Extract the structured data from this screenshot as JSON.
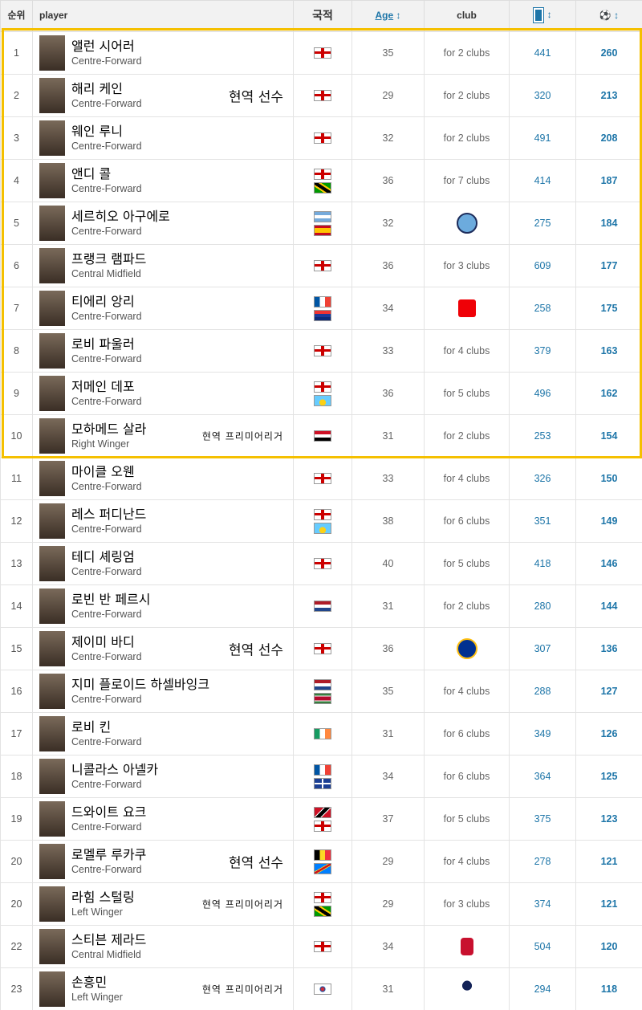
{
  "header": {
    "rank": "순위",
    "player": "player",
    "nationality": "국적",
    "age": "Age",
    "age_sort": "↕",
    "club": "club",
    "apps_icon": "pitch-icon",
    "apps_sort": "↕",
    "goals_icon": "football-icon",
    "goals_sort": "↕"
  },
  "colors": {
    "accent": "#1d75a8",
    "highlight": "#f5c000"
  },
  "rows": [
    {
      "rank": "1",
      "name": "앨런 시어러",
      "pos": "Centre-Forward",
      "note": "",
      "flags": [
        "eng"
      ],
      "age": "35",
      "club": "for 2 clubs",
      "apps": "441",
      "goals": "260"
    },
    {
      "rank": "2",
      "name": "해리 케인",
      "pos": "Centre-Forward",
      "note": "현역 선수",
      "flags": [
        "eng"
      ],
      "age": "29",
      "club": "for 2 clubs",
      "apps": "320",
      "goals": "213"
    },
    {
      "rank": "3",
      "name": "웨인 루니",
      "pos": "Centre-Forward",
      "note": "",
      "flags": [
        "eng"
      ],
      "age": "32",
      "club": "for 2 clubs",
      "apps": "491",
      "goals": "208"
    },
    {
      "rank": "4",
      "name": "앤디 콜",
      "pos": "Centre-Forward",
      "note": "",
      "flags": [
        "eng",
        "jam"
      ],
      "age": "36",
      "club": "for 7 clubs",
      "apps": "414",
      "goals": "187"
    },
    {
      "rank": "5",
      "name": "세르히오 아구에로",
      "pos": "Centre-Forward",
      "note": "",
      "flags": [
        "arg",
        "esp"
      ],
      "age": "32",
      "club": "",
      "club_logo": "man-city",
      "apps": "275",
      "goals": "184"
    },
    {
      "rank": "6",
      "name": "프랭크 램파드",
      "pos": "Central Midfield",
      "note": "",
      "flags": [
        "eng"
      ],
      "age": "36",
      "club": "for 3 clubs",
      "apps": "609",
      "goals": "177"
    },
    {
      "rank": "7",
      "name": "티에리 앙리",
      "pos": "Centre-Forward",
      "note": "",
      "flags": [
        "fra",
        "glp"
      ],
      "age": "34",
      "club": "",
      "club_logo": "arsenal",
      "apps": "258",
      "goals": "175"
    },
    {
      "rank": "8",
      "name": "로비 파울러",
      "pos": "Centre-Forward",
      "note": "",
      "flags": [
        "eng"
      ],
      "age": "33",
      "club": "for 4 clubs",
      "apps": "379",
      "goals": "163"
    },
    {
      "rank": "9",
      "name": "저메인 데포",
      "pos": "Centre-Forward",
      "note": "",
      "flags": [
        "eng",
        "lca"
      ],
      "age": "36",
      "club": "for 5 clubs",
      "apps": "496",
      "goals": "162"
    },
    {
      "rank": "10",
      "name": "모하메드 살라",
      "pos": "Right Winger",
      "note": "현역 프리미어리거",
      "flags": [
        "egy"
      ],
      "age": "31",
      "club": "for 2 clubs",
      "apps": "253",
      "goals": "154"
    },
    {
      "rank": "11",
      "name": "마이클 오웬",
      "pos": "Centre-Forward",
      "note": "",
      "flags": [
        "eng"
      ],
      "age": "33",
      "club": "for 4 clubs",
      "apps": "326",
      "goals": "150"
    },
    {
      "rank": "12",
      "name": "레스 퍼디난드",
      "pos": "Centre-Forward",
      "note": "",
      "flags": [
        "eng",
        "lca"
      ],
      "age": "38",
      "club": "for 6 clubs",
      "apps": "351",
      "goals": "149"
    },
    {
      "rank": "13",
      "name": "테디 셰링엄",
      "pos": "Centre-Forward",
      "note": "",
      "flags": [
        "eng"
      ],
      "age": "40",
      "club": "for 5 clubs",
      "apps": "418",
      "goals": "146"
    },
    {
      "rank": "14",
      "name": "로빈 반 페르시",
      "pos": "Centre-Forward",
      "note": "",
      "flags": [
        "ned"
      ],
      "age": "31",
      "club": "for 2 clubs",
      "apps": "280",
      "goals": "144"
    },
    {
      "rank": "15",
      "name": "제이미 바디",
      "pos": "Centre-Forward",
      "note": "현역 선수",
      "flags": [
        "eng"
      ],
      "age": "36",
      "club": "",
      "club_logo": "leicester",
      "apps": "307",
      "goals": "136"
    },
    {
      "rank": "16",
      "name": "지미 플로이드 하셀바잉크",
      "pos": "Centre-Forward",
      "note": "",
      "flags": [
        "ned",
        "sur"
      ],
      "age": "35",
      "club": "for 4 clubs",
      "apps": "288",
      "goals": "127"
    },
    {
      "rank": "17",
      "name": "로비 킨",
      "pos": "Centre-Forward",
      "note": "",
      "flags": [
        "irl"
      ],
      "age": "31",
      "club": "for 6 clubs",
      "apps": "349",
      "goals": "126"
    },
    {
      "rank": "18",
      "name": "니콜라스 아넬카",
      "pos": "Centre-Forward",
      "note": "",
      "flags": [
        "fra",
        "mtq"
      ],
      "age": "34",
      "club": "for 6 clubs",
      "apps": "364",
      "goals": "125"
    },
    {
      "rank": "19",
      "name": "드와이트 요크",
      "pos": "Centre-Forward",
      "note": "",
      "flags": [
        "tto",
        "eng"
      ],
      "age": "37",
      "club": "for 5 clubs",
      "apps": "375",
      "goals": "123"
    },
    {
      "rank": "20",
      "name": "로멜루 루카쿠",
      "pos": "Centre-Forward",
      "note": "현역 선수",
      "flags": [
        "bel",
        "cod"
      ],
      "age": "29",
      "club": "for 4 clubs",
      "apps": "278",
      "goals": "121"
    },
    {
      "rank": "20",
      "name": "라힘 스털링",
      "pos": "Left Winger",
      "note": "현역 프리미어리거",
      "flags": [
        "eng",
        "jam"
      ],
      "age": "29",
      "club": "for 3 clubs",
      "apps": "374",
      "goals": "121"
    },
    {
      "rank": "22",
      "name": "스티븐 제라드",
      "pos": "Central Midfield",
      "note": "",
      "flags": [
        "eng"
      ],
      "age": "34",
      "club": "",
      "club_logo": "liverpool",
      "apps": "504",
      "goals": "120"
    },
    {
      "rank": "23",
      "name": "손흥민",
      "pos": "Left Winger",
      "note": "현역 프리미어리거",
      "flags": [
        "kor"
      ],
      "age": "31",
      "club": "",
      "club_logo": "tottenham",
      "apps": "294",
      "goals": "118"
    }
  ]
}
